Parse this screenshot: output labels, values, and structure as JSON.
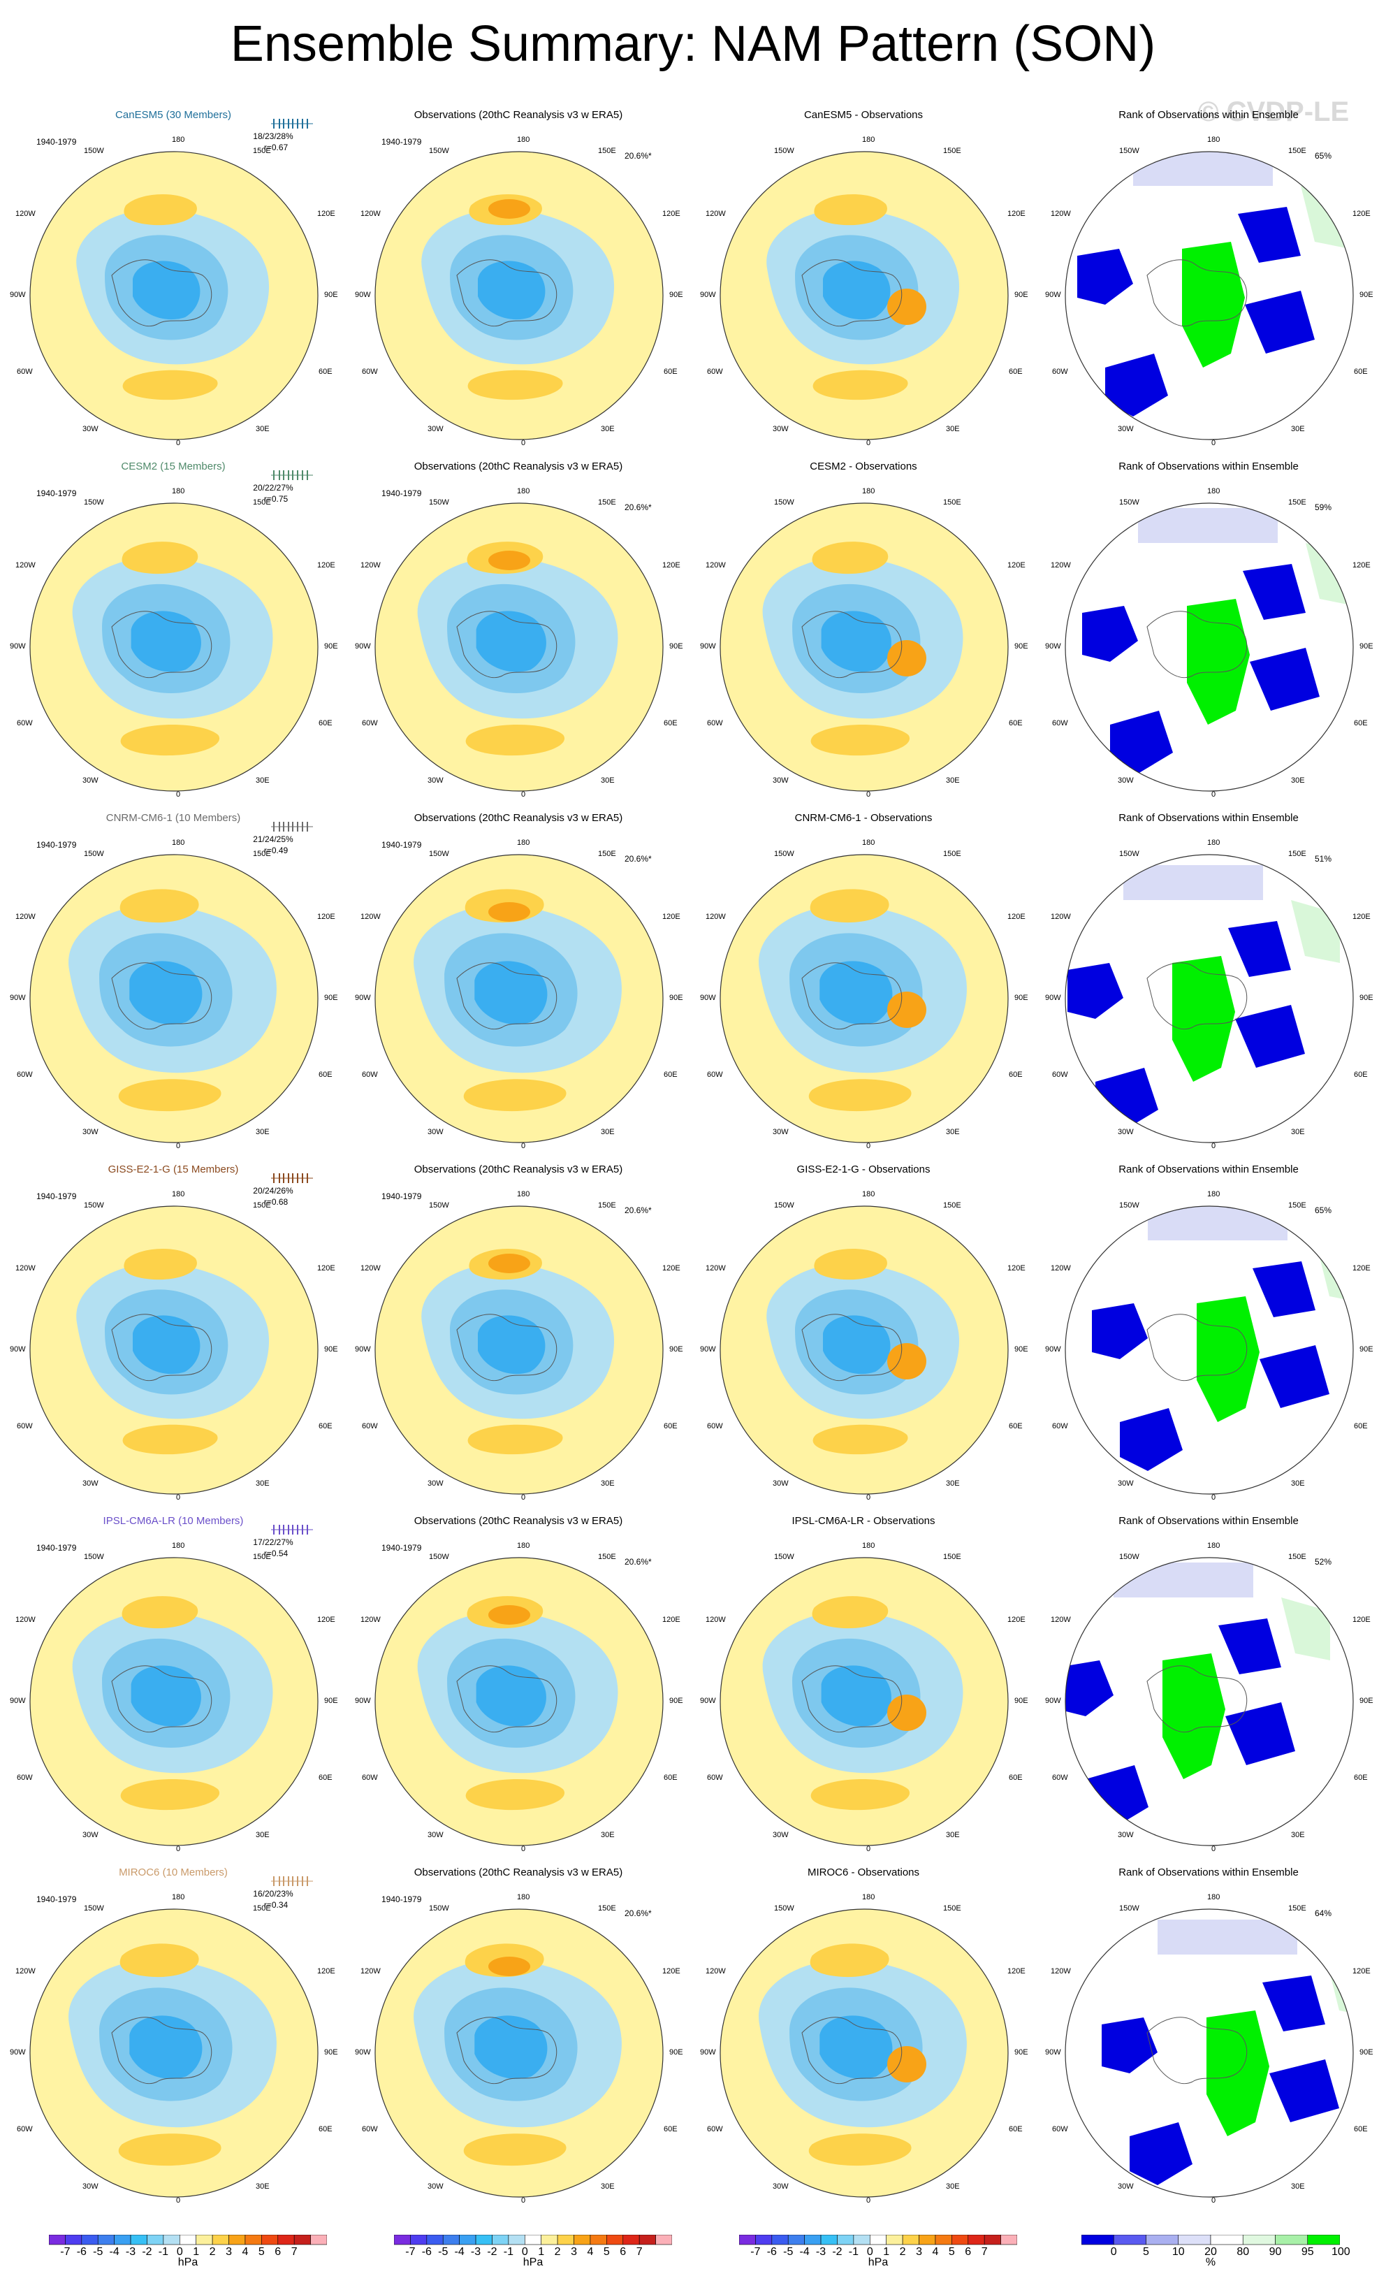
{
  "title": "Ensemble Summary: NAM Pattern (SON)",
  "watermark": "© CVDP-LE",
  "labels": {
    "period": "1940-1979",
    "obs_pct": "20.6%*",
    "lon_180": "180",
    "lon_150w": "150W",
    "lon_150e": "150E",
    "lon_120w": "120W",
    "lon_120e": "120E",
    "lon_90w": "90W",
    "lon_90e": "90E",
    "lon_60w": "60W",
    "lon_60e": "60E",
    "lon_30w": "30W",
    "lon_30e": "30E",
    "lon_0": "0"
  },
  "obs_title": "Observations (20thC Reanalysis v3 w ERA5)",
  "rank_title": "Rank of Observations within Ensemble",
  "rows": [
    {
      "model": "CanESM5 (30 Members)",
      "model_color": "#1f6f9a",
      "stats": "18/23/28%",
      "corr": "r=0.67",
      "diff_title": "CanESM5 - Observations",
      "rank_pct": "65%"
    },
    {
      "model": "CESM2 (15 Members)",
      "model_color": "#4f8a6a",
      "stats": "20/22/27%",
      "corr": "r=0.75",
      "diff_title": "CESM2 - Observations",
      "rank_pct": "59%"
    },
    {
      "model": "CNRM-CM6-1 (10 Members)",
      "model_color": "#6b6b6b",
      "stats": "21/24/25%",
      "corr": "r=0.49",
      "diff_title": "CNRM-CM6-1 - Observations",
      "rank_pct": "51%"
    },
    {
      "model": "GISS-E2-1-G (15 Members)",
      "model_color": "#8b4a1f",
      "stats": "20/24/26%",
      "corr": "r=0.68",
      "diff_title": "GISS-E2-1-G - Observations",
      "rank_pct": "65%"
    },
    {
      "model": "IPSL-CM6A-LR (10 Members)",
      "model_color": "#6a4fc9",
      "stats": "17/22/27%",
      "corr": "r=0.54",
      "diff_title": "IPSL-CM6A-LR - Observations",
      "rank_pct": "52%"
    },
    {
      "model": "MIROC6 (10 Members)",
      "model_color": "#c99a6a",
      "stats": "16/20/23%",
      "corr": "r=0.34",
      "diff_title": "MIROC6 - Observations",
      "rank_pct": "64%"
    }
  ],
  "colorbar_hpa": {
    "labels": [
      "-7",
      "-6",
      "-5",
      "-4",
      "-3",
      "-2",
      "-1",
      "0",
      "1",
      "2",
      "3",
      "4",
      "5",
      "6",
      "7"
    ],
    "unit": "hPa",
    "colors": [
      "#7a2ce0",
      "#4f3df0",
      "#3b5cf0",
      "#3e7fee",
      "#3aa0f2",
      "#37c0f5",
      "#7ed3f5",
      "#b4e0f3",
      "#ffffff",
      "#fcf09c",
      "#fdd24a",
      "#f8a317",
      "#f57a12",
      "#ef4a12",
      "#de2618",
      "#c6201c",
      "#fbb0b8"
    ]
  },
  "colorbar_rank": {
    "labels": [
      "0",
      "5",
      "10",
      "20",
      "80",
      "90",
      "95",
      "100"
    ],
    "unit": "%",
    "colors": [
      "#0000e0",
      "#5a5af0",
      "#aab0f0",
      "#dde0f8",
      "#ffffff",
      "#e0f8e0",
      "#a8f0a8",
      "#00f000"
    ]
  },
  "map_colors": {
    "yellow": "#fff3a3",
    "lightblue": "#b3e0f2",
    "blue2": "#7ec8ee",
    "blue3": "#3aaef0",
    "blue4": "#1f8fe8",
    "orange1": "#fdd24a",
    "orange2": "#f8a317",
    "rank_blue": "#0000e0",
    "rank_green": "#00f000",
    "rank_lav": "#d9dcf6",
    "rank_mint": "#d9f7d9"
  }
}
